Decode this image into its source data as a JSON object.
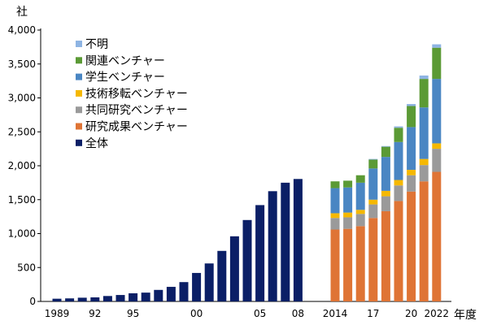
{
  "chart_data": {
    "type": "bar",
    "y_unit": "社",
    "x_unit": "年度",
    "ylim": [
      0,
      4000
    ],
    "yticks": [
      "0",
      "500",
      "1,000",
      "1,500",
      "2,000",
      "2,500",
      "3,000",
      "3,500",
      "4,000"
    ],
    "grid": false,
    "legend_position": "top-left",
    "legend": [
      {
        "key": "unknown",
        "label": "不明",
        "color": "#8eb4e3"
      },
      {
        "key": "related",
        "label": "関連ベンチャー",
        "color": "#5b9a35"
      },
      {
        "key": "student",
        "label": "学生ベンチャー",
        "color": "#4a86c3"
      },
      {
        "key": "transfer",
        "label": "技術移転ベンチャー",
        "color": "#f5b800"
      },
      {
        "key": "joint",
        "label": "共同研究ベンチャー",
        "color": "#9a9a9a"
      },
      {
        "key": "research",
        "label": "研究成果ベンチャー",
        "color": "#df7435"
      },
      {
        "key": "total",
        "label": "全体",
        "color": "#0b1f66"
      }
    ],
    "series_total": {
      "name": "全体",
      "years": [
        1989,
        1990,
        1991,
        1992,
        1993,
        1994,
        1995,
        1996,
        1997,
        1998,
        1999,
        2000,
        2001,
        2002,
        2003,
        2004,
        2005,
        2006,
        2007,
        2008
      ],
      "values": [
        40,
        45,
        55,
        60,
        80,
        95,
        120,
        130,
        170,
        215,
        285,
        420,
        560,
        745,
        960,
        1200,
        1420,
        1625,
        1750,
        1805
      ]
    },
    "stacked": {
      "years": [
        2014,
        2015,
        2016,
        2017,
        2018,
        2019,
        2020,
        2021,
        2022
      ],
      "series": [
        {
          "key": "research",
          "values": [
            1060,
            1070,
            1110,
            1230,
            1330,
            1480,
            1620,
            1770,
            1910
          ]
        },
        {
          "key": "joint",
          "values": [
            170,
            170,
            180,
            200,
            220,
            230,
            240,
            240,
            340
          ]
        },
        {
          "key": "transfer",
          "values": [
            70,
            70,
            60,
            70,
            80,
            80,
            80,
            90,
            80
          ]
        },
        {
          "key": "student",
          "values": [
            370,
            370,
            400,
            460,
            500,
            560,
            630,
            760,
            950
          ]
        },
        {
          "key": "related",
          "values": [
            100,
            100,
            110,
            130,
            150,
            210,
            310,
            420,
            460
          ]
        },
        {
          "key": "unknown",
          "values": [
            0,
            0,
            0,
            10,
            10,
            20,
            30,
            50,
            50
          ]
        }
      ]
    },
    "x_tick_labels": [
      {
        "year": 1989,
        "label": "1989"
      },
      {
        "year": 1992,
        "label": "92"
      },
      {
        "year": 1995,
        "label": "95"
      },
      {
        "year": 2000,
        "label": "00"
      },
      {
        "year": 2005,
        "label": "05"
      },
      {
        "year": 2008,
        "label": "08"
      },
      {
        "year": 2014,
        "label": "2014"
      },
      {
        "year": 2017,
        "label": "17"
      },
      {
        "year": 2020,
        "label": "20"
      },
      {
        "year": 2022,
        "label": "2022"
      }
    ]
  }
}
